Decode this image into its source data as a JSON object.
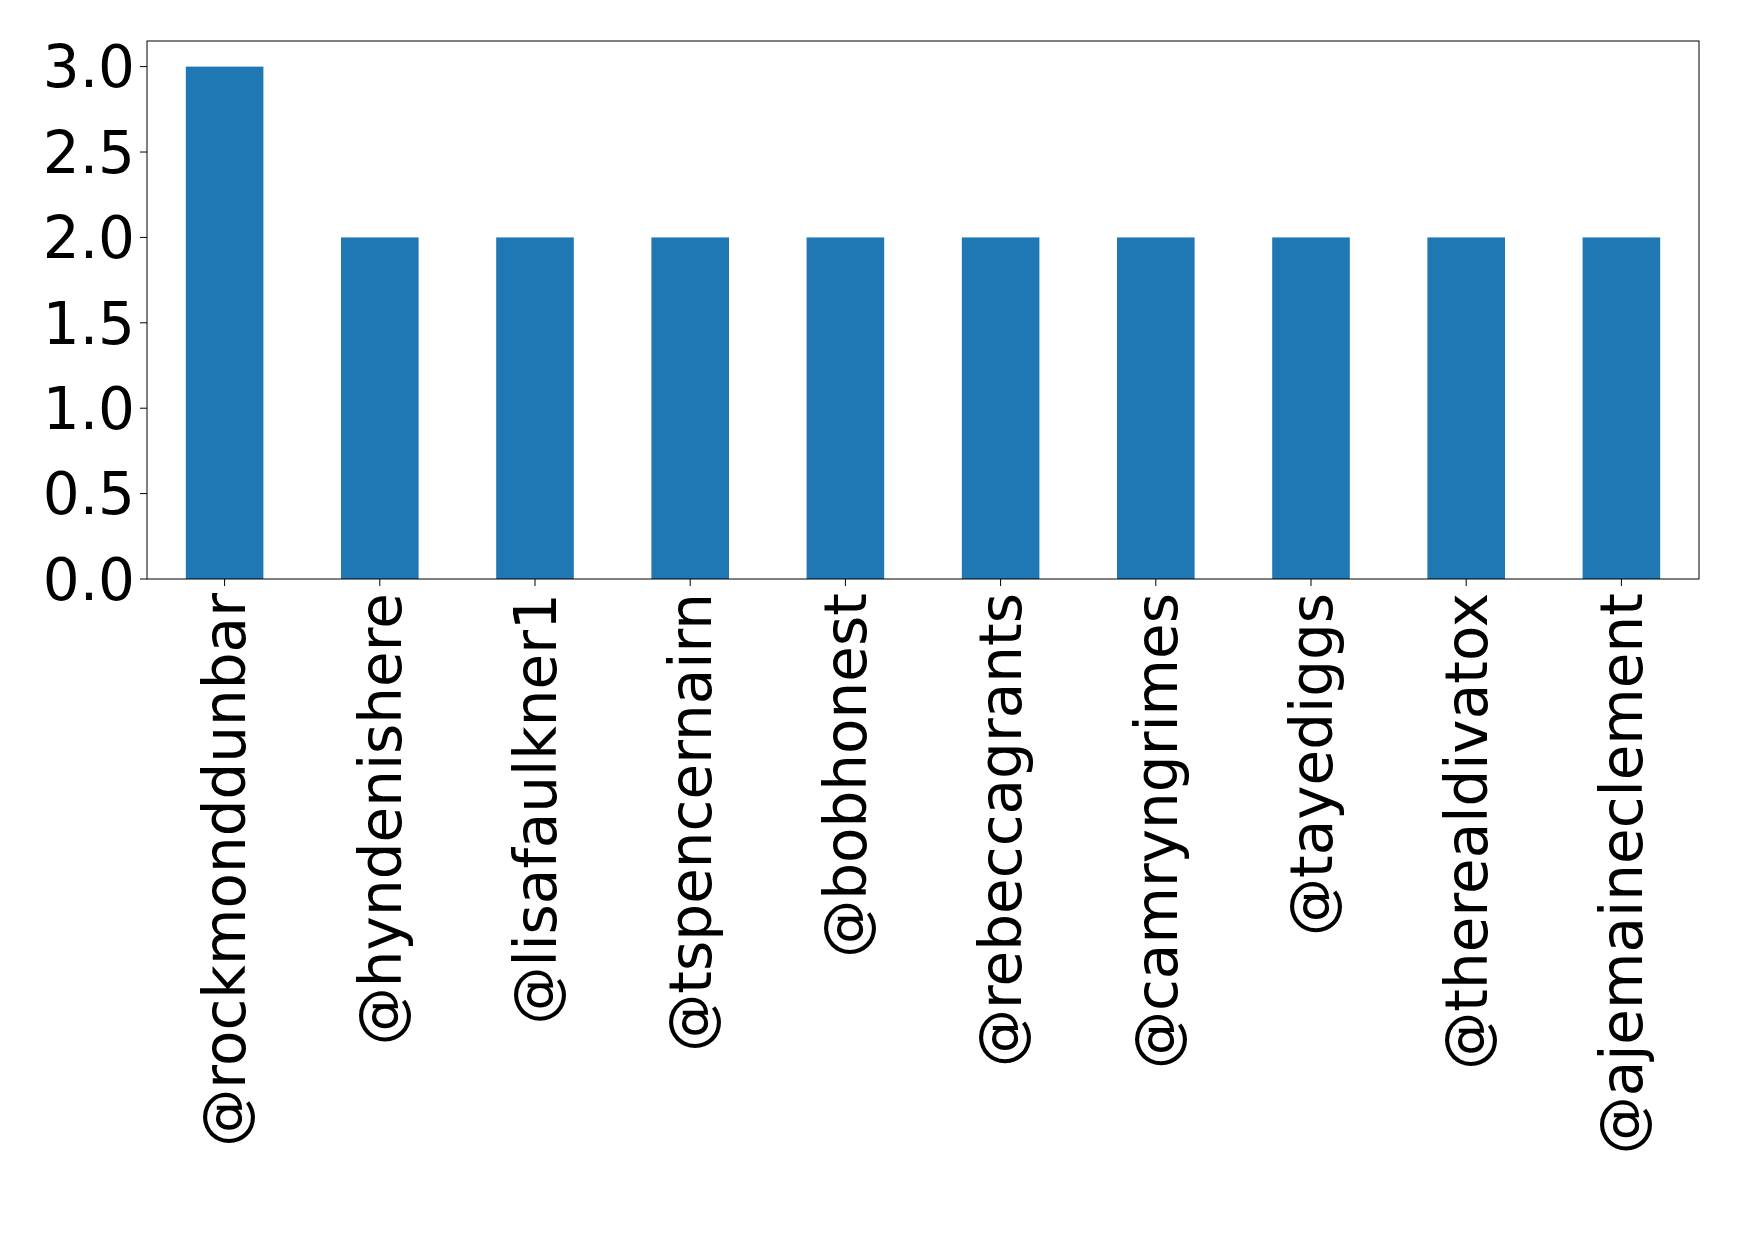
{
  "chart_data": {
    "type": "bar",
    "categories": [
      "@rockmonddunbar",
      "@hyndenishere",
      "@lisafaulkner1",
      "@tspencernairn",
      "@bobhonest",
      "@rebeccagrants",
      "@camryngrimes",
      "@tayediggs",
      "@therealdivatox",
      "@ajemaineclement"
    ],
    "values": [
      3,
      2,
      2,
      2,
      2,
      2,
      2,
      2,
      2,
      2
    ],
    "color": "#1f77b4",
    "ylim": [
      0,
      3.15
    ],
    "yticks": [
      {
        "value": 0,
        "label": "0.0"
      },
      {
        "value": 0.5,
        "label": "0.5"
      },
      {
        "value": 1,
        "label": "1.0"
      },
      {
        "value": 1.5,
        "label": "1.5"
      },
      {
        "value": 2,
        "label": "2.0"
      },
      {
        "value": 2.5,
        "label": "2.5"
      },
      {
        "value": 3,
        "label": "3.0"
      }
    ],
    "grid": false
  }
}
